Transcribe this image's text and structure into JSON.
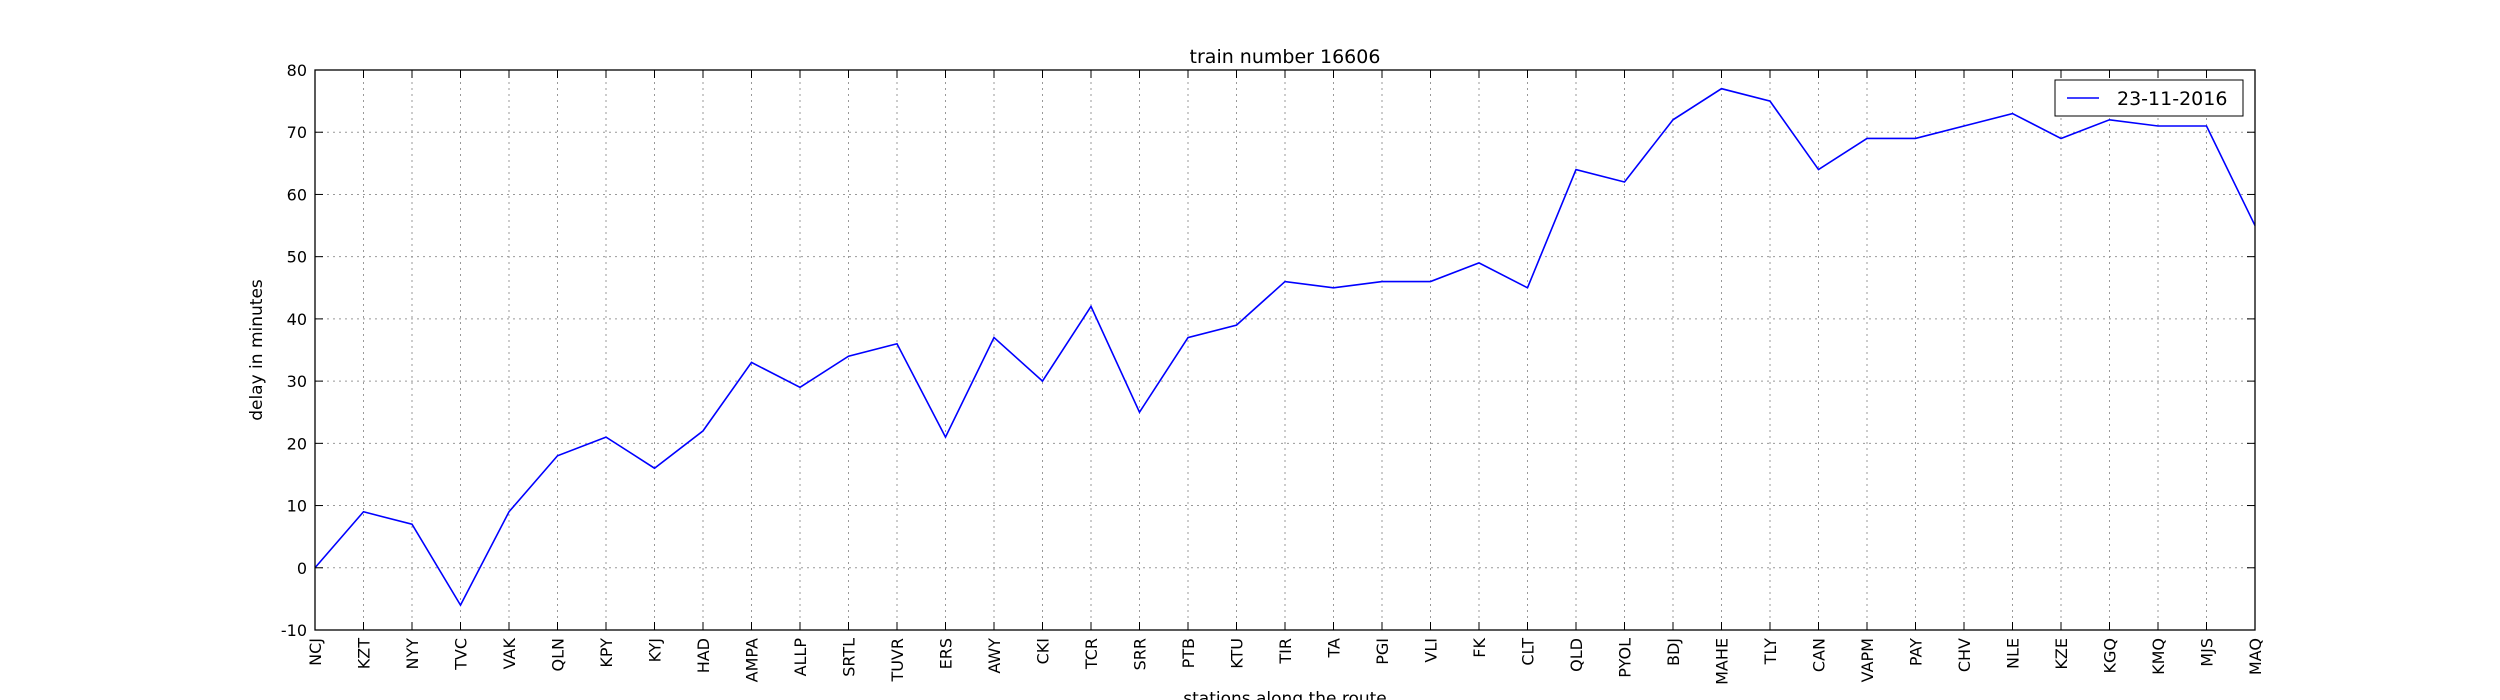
{
  "chart_data": {
    "type": "line",
    "title": "train number 16606",
    "xlabel": "stations along the route",
    "ylabel": "delay in minutes",
    "ylim": [
      -10,
      80
    ],
    "yticks": [
      -10,
      0,
      10,
      20,
      30,
      40,
      50,
      60,
      70,
      80
    ],
    "grid": true,
    "legend_position": "top-right",
    "categories": [
      "NCJ",
      "KZT",
      "NYY",
      "TVC",
      "VAK",
      "QLN",
      "KPY",
      "KYJ",
      "HAD",
      "AMPA",
      "ALLP",
      "SRTL",
      "TUVR",
      "ERS",
      "AWY",
      "CKI",
      "TCR",
      "SRR",
      "PTB",
      "KTU",
      "TIR",
      "TA",
      "PGI",
      "VLI",
      "FK",
      "CLT",
      "QLD",
      "PYOL",
      "BDJ",
      "MAHE",
      "TLY",
      "CAN",
      "VAPM",
      "PAY",
      "CHV",
      "NLE",
      "KZE",
      "KGQ",
      "KMQ",
      "MJS",
      "MAQ"
    ],
    "series": [
      {
        "name": "23-11-2016",
        "color": "#0000ff",
        "values": [
          0,
          9,
          7,
          -6,
          9,
          18,
          21,
          16,
          22,
          33,
          29,
          34,
          36,
          21,
          37,
          30,
          42,
          25,
          37,
          39,
          46,
          45,
          46,
          46,
          49,
          45,
          64,
          62,
          72,
          77,
          75,
          64,
          69,
          69,
          71,
          73,
          69,
          72,
          71,
          71,
          55
        ]
      }
    ]
  }
}
